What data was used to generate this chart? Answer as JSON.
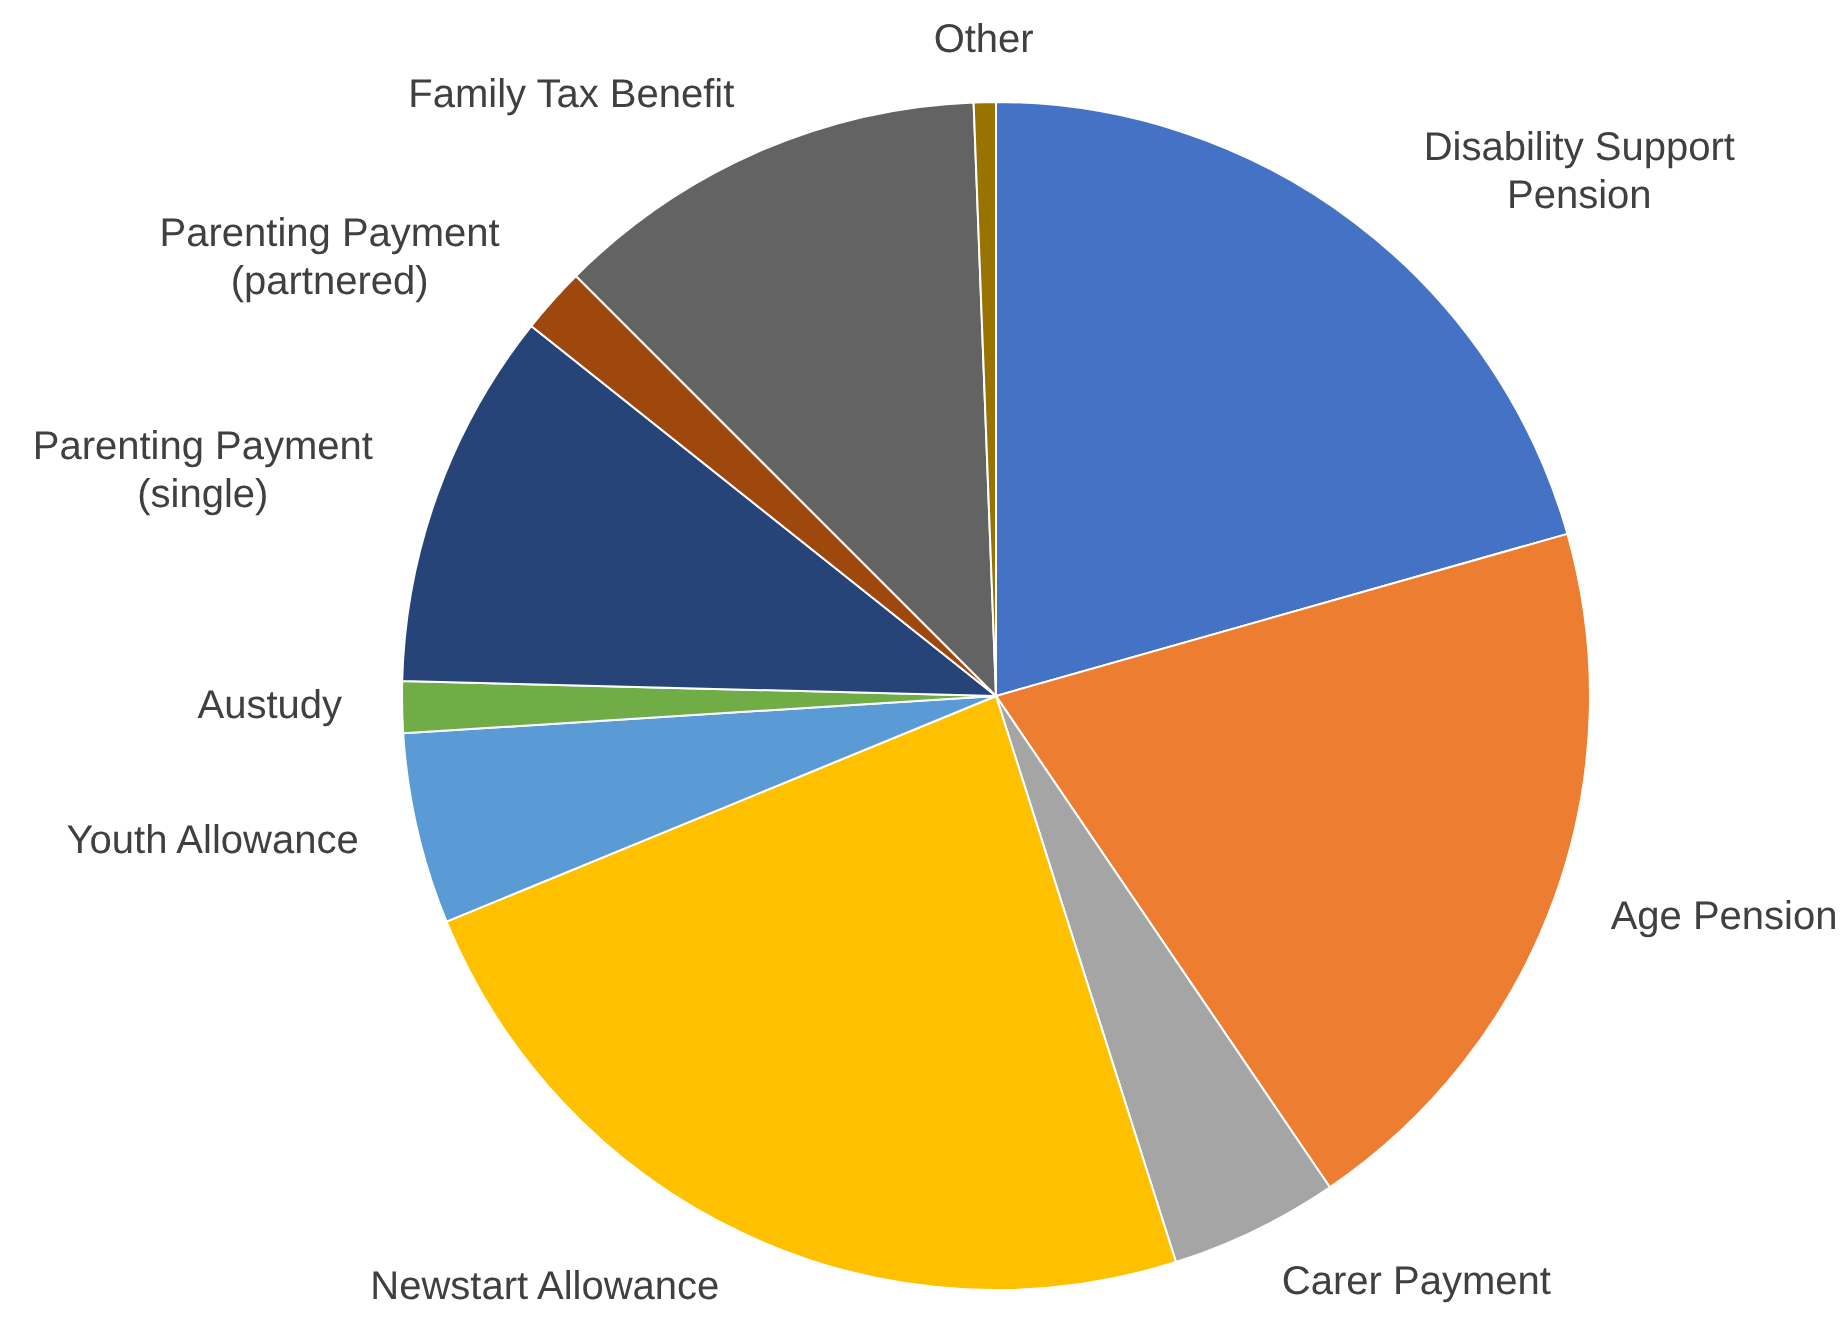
{
  "chart_data": {
    "type": "pie",
    "categories": [
      "Disability Support Pension",
      "Age Pension",
      "Carer Payment",
      "Newstart Allowance",
      "Youth Allowance",
      "Austudy",
      "Parenting Payment (single)",
      "Parenting Payment (partnered)",
      "Family Tax Benefit",
      "Other"
    ],
    "values": [
      20.6,
      19.9,
      4.6,
      23.7,
      5.2,
      1.4,
      10.3,
      1.8,
      11.9,
      0.6
    ],
    "colors": [
      "#4472c4",
      "#ed7d31",
      "#a5a5a5",
      "#ffc000",
      "#5b9bd5",
      "#70ad47",
      "#264478",
      "#9e480e",
      "#636363",
      "#997300"
    ]
  }
}
